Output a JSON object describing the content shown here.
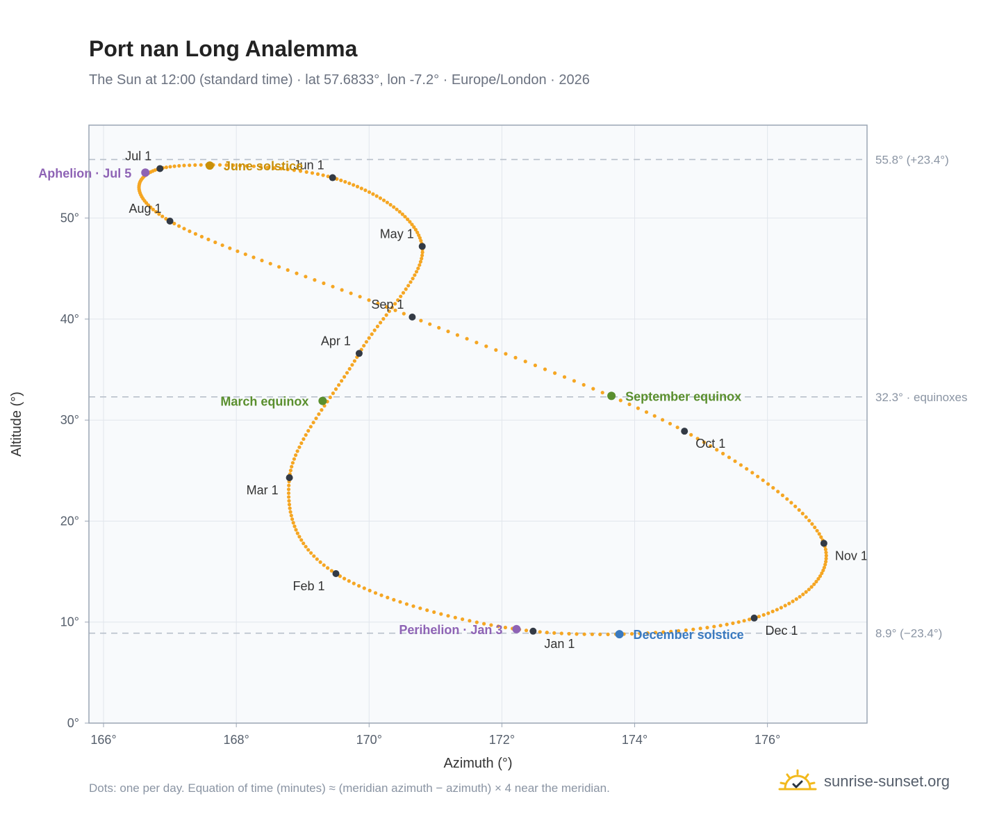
{
  "title": "Port nan Long Analemma",
  "subtitle": "The Sun at 12:00 (standard time) · lat 57.6833°, lon -7.2° · Europe/London · 2026",
  "footnote": "Dots: one per day. Equation of time (minutes) ≈ (meridian azimuth − azimuth) × 4 near the meridian.",
  "brand": {
    "name": "sunrise-sunset.org",
    "icon": "sun-logo-icon"
  },
  "colors": {
    "curve": "#f5a623",
    "month_marker": "#333a45",
    "solstice_june": "#c8900a",
    "solstice_december": "#3a7ac0",
    "equinox": "#5a8f2e",
    "apsis": "#8e63b5",
    "reference_line": "#b8c0ca",
    "plot_bg": "#f8fafc",
    "plot_border": "#9aa5b4",
    "grid": "#e1e6ec"
  },
  "chart_data": {
    "type": "scatter",
    "xlabel": "Azimuth (°)",
    "ylabel": "Altitude (°)",
    "xlim": [
      165.78,
      177.5
    ],
    "ylim": [
      0,
      59.2
    ],
    "grid": true,
    "x_ticks": [
      166,
      168,
      170,
      172,
      174,
      176
    ],
    "x_tick_labels": [
      "166°",
      "168°",
      "170°",
      "172°",
      "174°",
      "176°"
    ],
    "y_ticks": [
      0,
      10,
      20,
      30,
      40,
      50
    ],
    "y_tick_labels": [
      "0°",
      "10°",
      "20°",
      "30°",
      "40°",
      "50°"
    ],
    "series": [
      {
        "points_per": "day",
        "anchors": [
          {
            "x": 172.47,
            "y": 9.1
          },
          {
            "x": 169.5,
            "y": 14.8
          },
          {
            "x": 168.8,
            "y": 24.3
          },
          {
            "x": 169.85,
            "y": 36.6
          },
          {
            "x": 170.8,
            "y": 47.2
          },
          {
            "x": 169.45,
            "y": 54.0
          },
          {
            "x": 166.85,
            "y": 54.9
          },
          {
            "x": 167.0,
            "y": 49.7
          },
          {
            "x": 170.65,
            "y": 40.2
          },
          {
            "x": 174.75,
            "y": 28.9
          },
          {
            "x": 176.85,
            "y": 17.8
          },
          {
            "x": 175.8,
            "y": 10.4
          }
        ]
      }
    ],
    "reference_lines": [
      {
        "y": 55.8,
        "label": "55.8° (+23.4°)"
      },
      {
        "y": 32.3,
        "label": "32.3° · equinoxes"
      },
      {
        "y": 8.9,
        "label": "8.9° (−23.4°)"
      }
    ],
    "month_markers": [
      {
        "label": "Jan 1",
        "x": 172.47,
        "y": 9.1,
        "anchor": "below-right"
      },
      {
        "label": "Feb 1",
        "x": 169.5,
        "y": 14.8,
        "anchor": "below-left"
      },
      {
        "label": "Mar 1",
        "x": 168.8,
        "y": 24.3,
        "anchor": "below-left"
      },
      {
        "label": "Apr 1",
        "x": 169.85,
        "y": 36.6,
        "anchor": "above-left"
      },
      {
        "label": "May 1",
        "x": 170.8,
        "y": 47.2,
        "anchor": "above-left"
      },
      {
        "label": "Jun 1",
        "x": 169.45,
        "y": 54.0,
        "anchor": "above-left"
      },
      {
        "label": "Jul 1",
        "x": 166.85,
        "y": 54.9,
        "anchor": "above-left"
      },
      {
        "label": "Aug 1",
        "x": 167.0,
        "y": 49.7,
        "anchor": "above-left"
      },
      {
        "label": "Sep 1",
        "x": 170.65,
        "y": 40.2,
        "anchor": "above-left"
      },
      {
        "label": "Oct 1",
        "x": 174.75,
        "y": 28.9,
        "anchor": "below-right"
      },
      {
        "label": "Nov 1",
        "x": 176.85,
        "y": 17.8,
        "anchor": "right"
      },
      {
        "label": "Dec 1",
        "x": 175.8,
        "y": 10.4,
        "anchor": "below-right"
      }
    ],
    "events": [
      {
        "label": "June solstice",
        "x": 167.6,
        "y": 55.2,
        "color": "#c8900a",
        "side": "right"
      },
      {
        "label": "Aphelion · Jul 5",
        "x": 166.63,
        "y": 54.5,
        "color": "#8e63b5",
        "side": "left"
      },
      {
        "label": "March equinox",
        "x": 169.3,
        "y": 31.9,
        "color": "#5a8f2e",
        "side": "left"
      },
      {
        "label": "September equinox",
        "x": 173.65,
        "y": 32.4,
        "color": "#5a8f2e",
        "side": "right"
      },
      {
        "label": "Perihelion · Jan 3",
        "x": 172.22,
        "y": 9.3,
        "color": "#8e63b5",
        "side": "left"
      },
      {
        "label": "December solstice",
        "x": 173.77,
        "y": 8.8,
        "color": "#3a7ac0",
        "side": "right"
      }
    ]
  }
}
